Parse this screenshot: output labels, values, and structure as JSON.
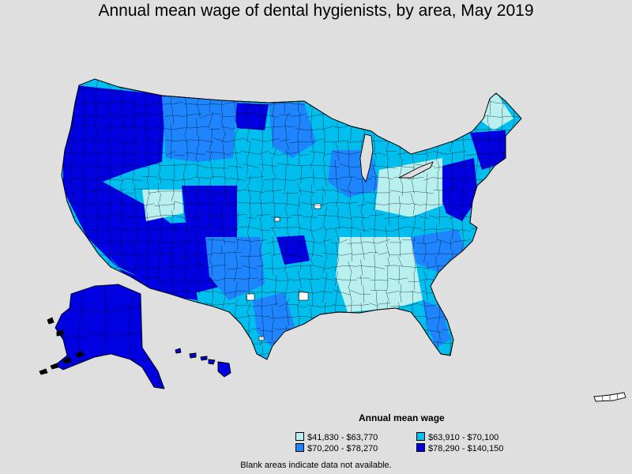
{
  "title": "Annual mean wage of dental hygienists, by area, May 2019",
  "legend": {
    "title": "Annual mean wage",
    "items": [
      {
        "label": "$41,830 - $63,770",
        "color": "#b8f0f0"
      },
      {
        "label": "$63,910 - $70,100",
        "color": "#00bfef"
      },
      {
        "label": "$70,200 - $78,270",
        "color": "#1f85ff"
      },
      {
        "label": "$78,290 - $140,150",
        "color": "#0000e0"
      }
    ]
  },
  "footnote": "Blank areas indicate data not available.",
  "colors": {
    "background": "#dfdfdf",
    "no_data": "#ffffff",
    "border": "#000000"
  }
}
